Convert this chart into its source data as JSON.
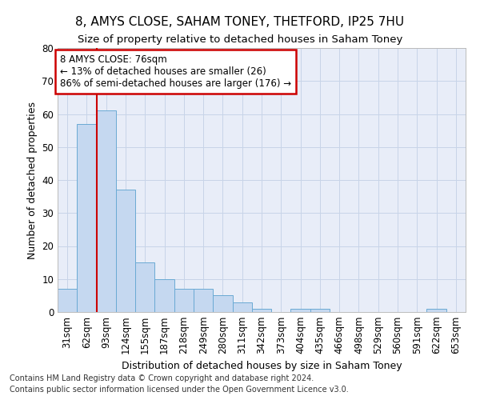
{
  "title_line1": "8, AMYS CLOSE, SAHAM TONEY, THETFORD, IP25 7HU",
  "title_line2": "Size of property relative to detached houses in Saham Toney",
  "xlabel": "Distribution of detached houses by size in Saham Toney",
  "ylabel": "Number of detached properties",
  "categories": [
    "31sqm",
    "62sqm",
    "93sqm",
    "124sqm",
    "155sqm",
    "187sqm",
    "218sqm",
    "249sqm",
    "280sqm",
    "311sqm",
    "342sqm",
    "373sqm",
    "404sqm",
    "435sqm",
    "466sqm",
    "498sqm",
    "529sqm",
    "560sqm",
    "591sqm",
    "622sqm",
    "653sqm"
  ],
  "values": [
    7,
    57,
    61,
    37,
    15,
    10,
    7,
    7,
    5,
    3,
    1,
    0,
    1,
    1,
    0,
    0,
    0,
    0,
    0,
    1,
    0
  ],
  "bar_color": "#c5d8f0",
  "bar_edge_color": "#6aaad4",
  "bar_linewidth": 0.7,
  "vline_color": "#cc0000",
  "vline_x": 1.5,
  "annotation_text": "8 AMYS CLOSE: 76sqm\n← 13% of detached houses are smaller (26)\n86% of semi-detached houses are larger (176) →",
  "annotation_box_color": "white",
  "annotation_box_edgecolor": "#cc0000",
  "ylim": [
    0,
    80
  ],
  "yticks": [
    0,
    10,
    20,
    30,
    40,
    50,
    60,
    70,
    80
  ],
  "grid_color": "#c8d4e8",
  "bg_color": "#e8edf8",
  "footnote1": "Contains HM Land Registry data © Crown copyright and database right 2024.",
  "footnote2": "Contains public sector information licensed under the Open Government Licence v3.0.",
  "title1_fontsize": 11,
  "title2_fontsize": 9.5,
  "xlabel_fontsize": 9,
  "ylabel_fontsize": 9,
  "tick_fontsize": 8.5,
  "annot_fontsize": 8.5,
  "footnote_fontsize": 7
}
